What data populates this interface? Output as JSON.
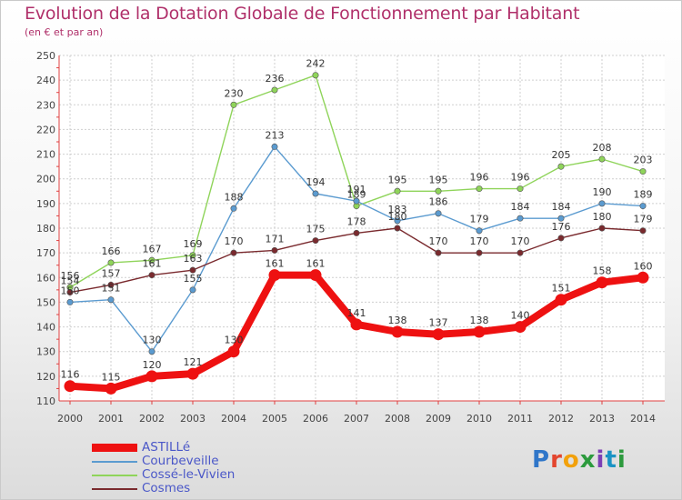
{
  "chart_data": {
    "type": "line",
    "title": "Evolution de la Dotation Globale de Fonctionnement par Habitant",
    "subtitle": "(en € et par an)",
    "xlabel": "",
    "ylabel": "",
    "ylim": [
      110,
      250
    ],
    "yticks": [
      110,
      120,
      130,
      140,
      150,
      160,
      170,
      180,
      190,
      200,
      210,
      220,
      230,
      240,
      250
    ],
    "grid": true,
    "legend_position": "bottom-left",
    "categories": [
      "2000",
      "2001",
      "2002",
      "2003",
      "2004",
      "2005",
      "2006",
      "2007",
      "2008",
      "2009",
      "2010",
      "2011",
      "2012",
      "2013",
      "2014"
    ],
    "series": [
      {
        "name": "Cossé-le-Vivien",
        "color": "#8fd45a",
        "values": [
          156,
          166,
          167,
          169,
          230,
          236,
          242,
          189,
          195,
          195,
          196,
          196,
          205,
          208,
          203
        ]
      },
      {
        "name": "Courbeveille",
        "color": "#5b9bd0",
        "values": [
          150,
          151,
          130,
          155,
          188,
          213,
          194,
          191,
          183,
          186,
          179,
          184,
          184,
          190,
          189
        ]
      },
      {
        "name": "Cosmes",
        "color": "#7a2a2e",
        "values": [
          154,
          157,
          161,
          163,
          170,
          171,
          175,
          178,
          180,
          170,
          170,
          170,
          176,
          180,
          179
        ]
      },
      {
        "name": "ASTILLé",
        "color": "#ee1111",
        "values": [
          116,
          115,
          120,
          121,
          130,
          161,
          161,
          141,
          138,
          137,
          138,
          140,
          151,
          158,
          160
        ]
      }
    ],
    "data_labels": {
      "Cossé-le-Vivien": [
        "156",
        "166",
        "167",
        "169",
        "230",
        "236",
        "242",
        "189",
        "195",
        "195",
        "196",
        "196",
        "205",
        "208",
        "203"
      ],
      "Courbeveille": [
        "150",
        "151",
        "130",
        "155",
        "188",
        "213",
        "194",
        "191",
        "183",
        "186",
        "179",
        "184",
        "184",
        "190",
        "189"
      ],
      "Cosmes": [
        "154",
        "157",
        "161",
        "163",
        "170",
        "171",
        "175",
        "178",
        "180",
        "170",
        "170",
        "170",
        "176",
        "180",
        "179"
      ],
      "ASTILLé": [
        "116",
        "115",
        "120",
        "121",
        "130",
        "161",
        "161",
        "141",
        "138",
        "137",
        "138",
        "140",
        "151",
        "158",
        "160"
      ]
    }
  },
  "legend": {
    "items": [
      {
        "label": "ASTILLé",
        "color": "#ee1111",
        "style": "thick"
      },
      {
        "label": "Courbeveille",
        "color": "#5b9bd0",
        "style": "thin"
      },
      {
        "label": "Cossé-le-Vivien",
        "color": "#8fd45a",
        "style": "thin"
      },
      {
        "label": "Cosmes",
        "color": "#7a2a2e",
        "style": "thin"
      }
    ]
  },
  "logo": {
    "letters": [
      "P",
      "r",
      "o",
      "x",
      "i",
      "t",
      "i"
    ],
    "text": "Proxiti"
  }
}
